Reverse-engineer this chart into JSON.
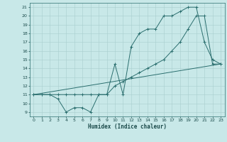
{
  "xlabel": "Humidex (Indice chaleur)",
  "bg_color": "#c8e8e8",
  "grid_color": "#a8cece",
  "line_color": "#2a6e6e",
  "xlim": [
    -0.5,
    23.5
  ],
  "ylim": [
    8.5,
    21.5
  ],
  "xticks": [
    0,
    1,
    2,
    3,
    4,
    5,
    6,
    7,
    8,
    9,
    10,
    11,
    12,
    13,
    14,
    15,
    16,
    17,
    18,
    19,
    20,
    21,
    22,
    23
  ],
  "yticks": [
    9,
    10,
    11,
    12,
    13,
    14,
    15,
    16,
    17,
    18,
    19,
    20,
    21
  ],
  "line1_x": [
    0,
    1,
    2,
    3,
    4,
    5,
    6,
    7,
    8,
    9,
    10,
    11,
    12,
    13,
    14,
    15,
    16,
    17,
    18,
    19,
    20,
    21,
    22,
    23
  ],
  "line1_y": [
    11,
    11,
    11,
    10.5,
    9,
    9.5,
    9.5,
    9,
    11,
    11,
    14.5,
    11,
    16.5,
    18,
    18.5,
    18.5,
    20,
    20,
    20.5,
    21,
    21,
    17,
    15,
    14.5
  ],
  "line2_x": [
    0,
    1,
    2,
    3,
    4,
    5,
    6,
    7,
    8,
    9,
    10,
    11,
    12,
    13,
    14,
    15,
    16,
    17,
    18,
    19,
    20,
    21,
    22,
    23
  ],
  "line2_y": [
    11,
    11,
    11,
    11,
    11,
    11,
    11,
    11,
    11,
    11,
    12,
    12.5,
    13,
    13.5,
    14,
    14.5,
    15,
    16,
    17,
    18.5,
    20,
    20,
    14.5,
    14.5
  ],
  "line3_x": [
    0,
    23
  ],
  "line3_y": [
    11,
    14.5
  ],
  "xlabel_fontsize": 5.5,
  "tick_fontsize": 4.5,
  "lw": 0.7,
  "ms": 2.5
}
